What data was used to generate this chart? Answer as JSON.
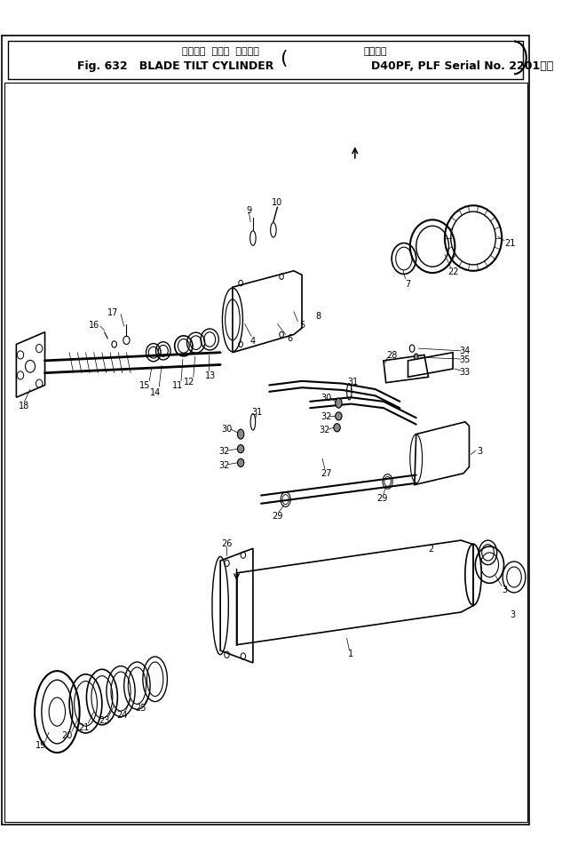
{
  "title_line1": "ブレード  チルト  シリンダ",
  "title_line2": "Fig. 632   BLADE TILT CYLINDER",
  "title_line3": "適用号機",
  "title_line4": "D40PF, PLF Serial No. 2201～）",
  "title_paren": "(",
  "bg_color": "#ffffff",
  "fg_color": "#000000",
  "fig_width": 6.51,
  "fig_height": 9.7,
  "dpi": 100
}
